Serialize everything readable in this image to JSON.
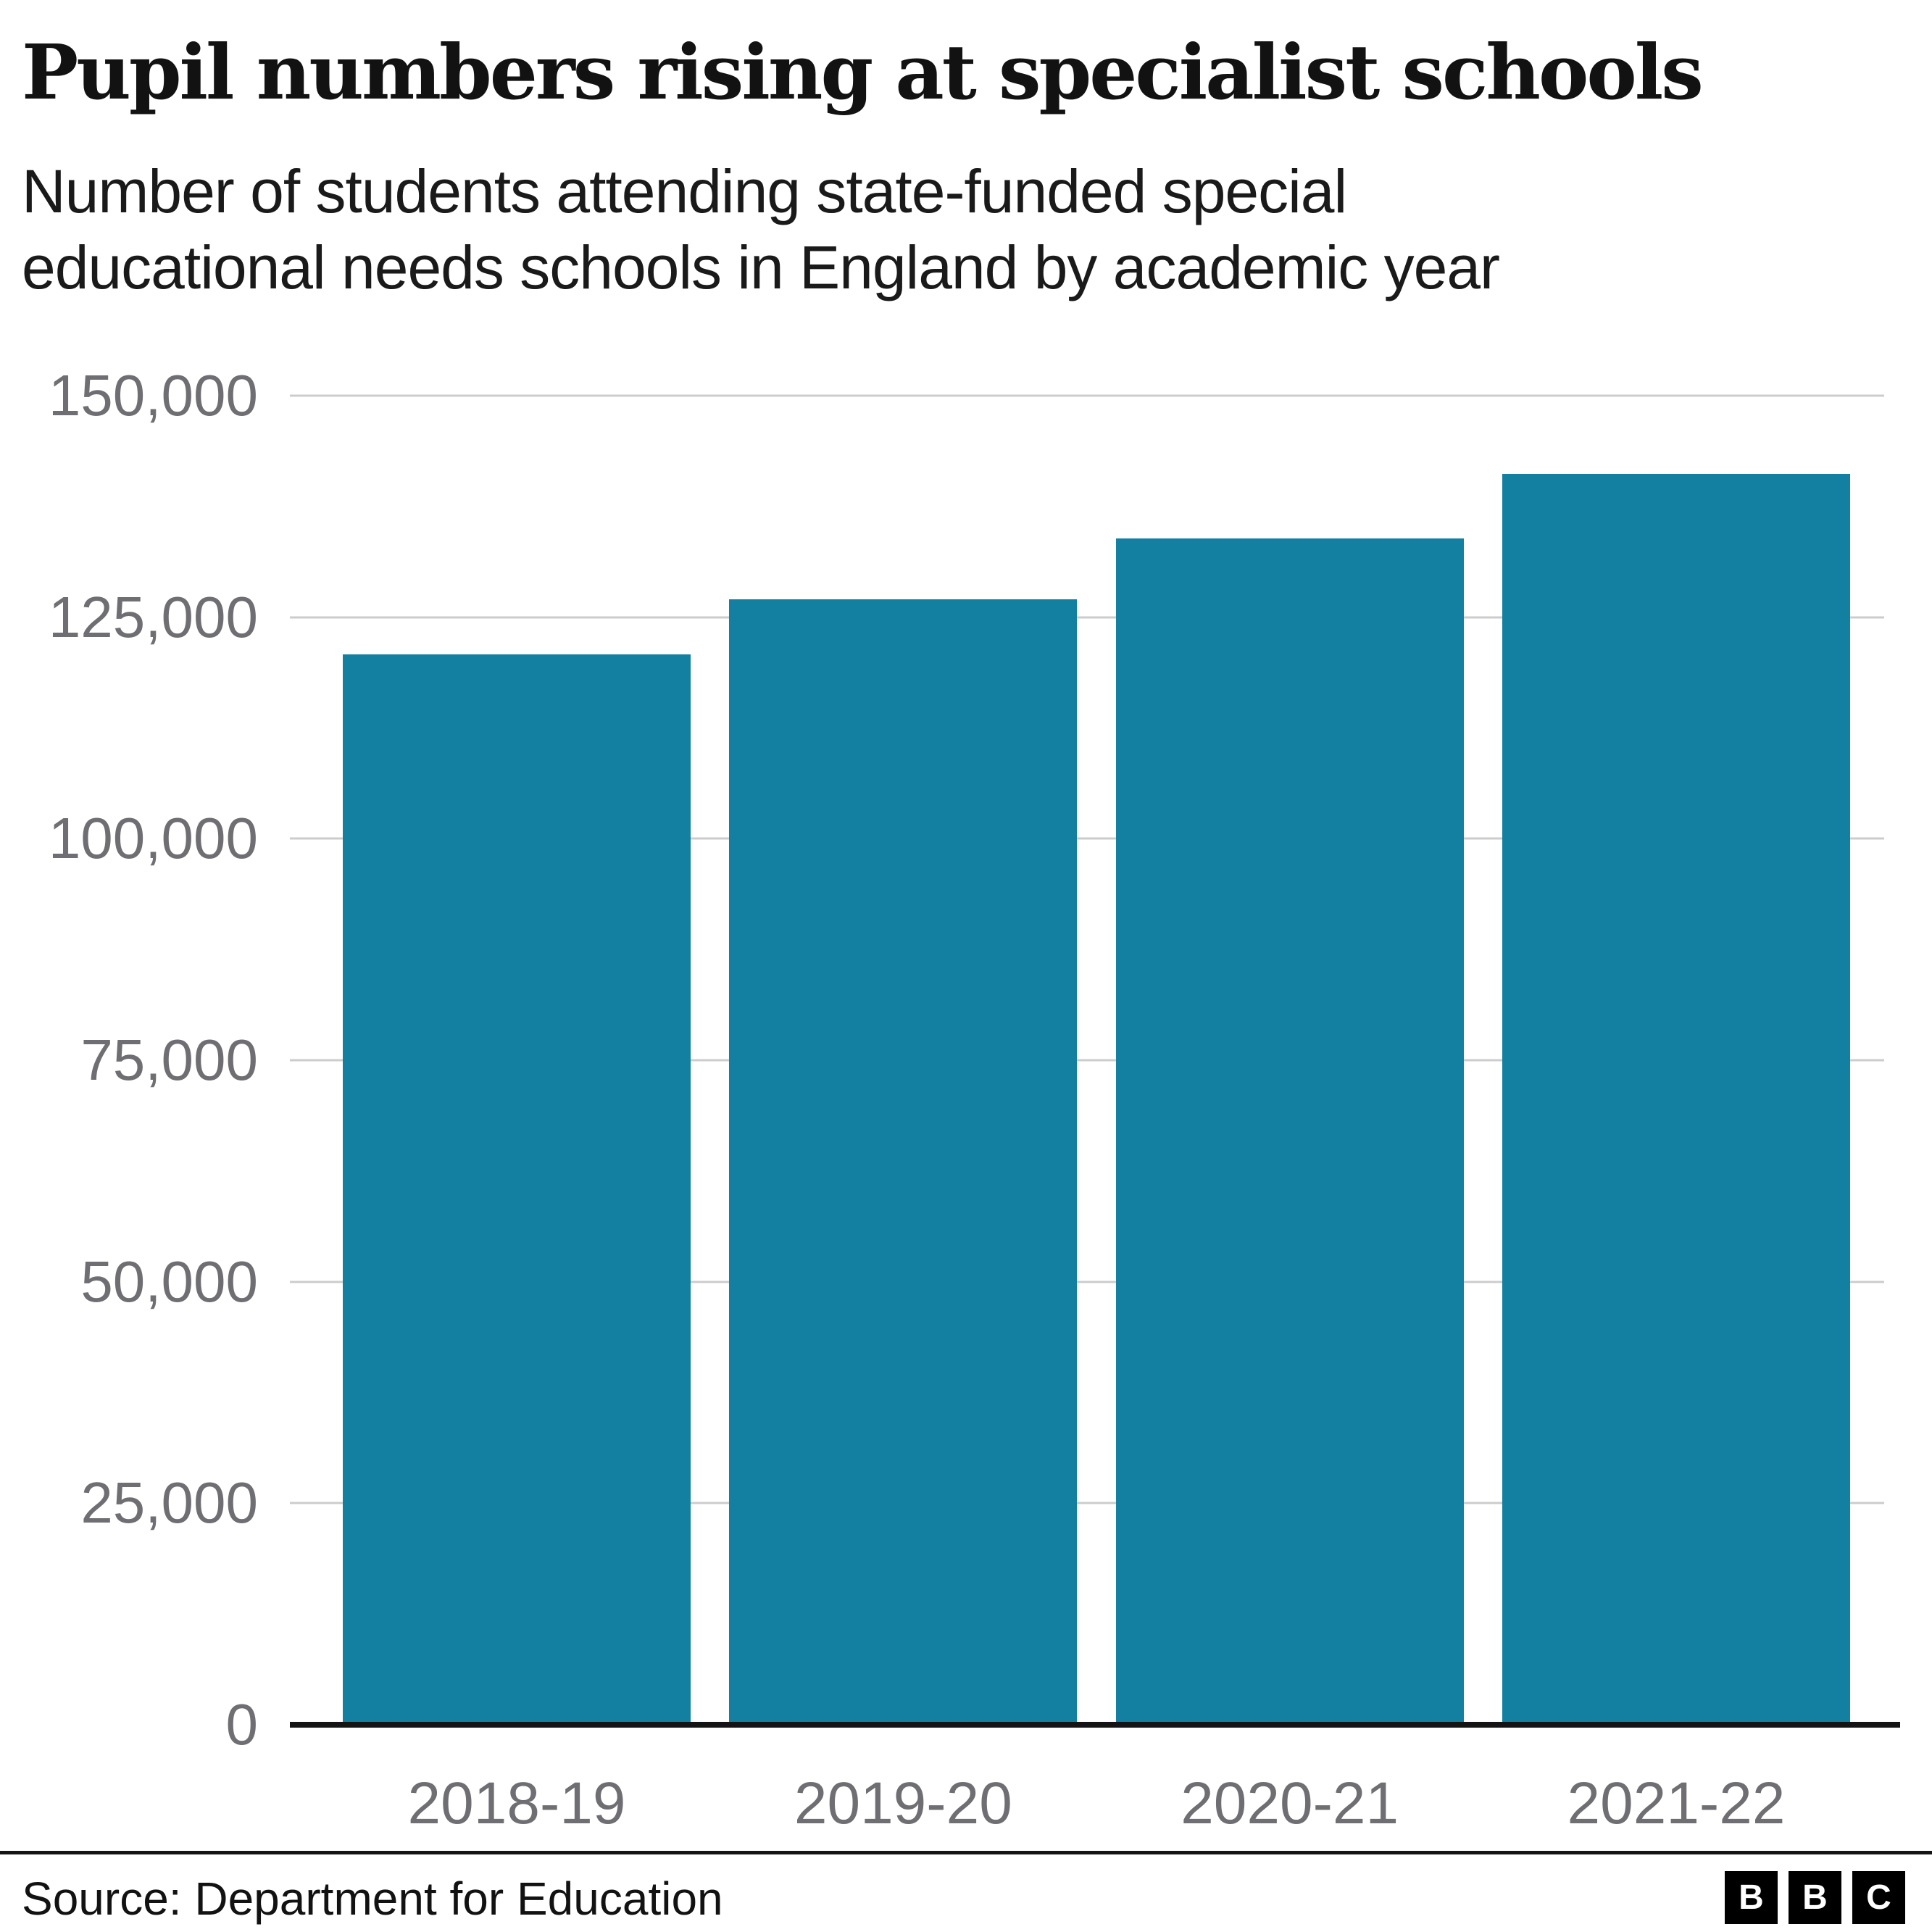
{
  "header": {
    "title": "Pupil numbers rising at specialist schools",
    "subtitle_lines": [
      "Number of students attending state-funded special",
      "educational needs schools in England by academic year"
    ]
  },
  "chart_data": {
    "type": "bar",
    "title": "Pupil numbers rising at specialist schools",
    "subtitle": "Number of students attending state-funded special educational needs schools in England by academic year",
    "categories": [
      "2018-19",
      "2019-20",
      "2020-21",
      "2021-22"
    ],
    "values": [
      120800,
      127000,
      133900,
      141200
    ],
    "xlabel": "",
    "ylabel": "",
    "ylim": [
      0,
      150000
    ],
    "yticks": [
      {
        "value": 150000,
        "label": "150,000"
      },
      {
        "value": 125000,
        "label": "125,000"
      },
      {
        "value": 100000,
        "label": "100,000"
      },
      {
        "value": 75000,
        "label": "75,000"
      },
      {
        "value": 50000,
        "label": "50,000"
      },
      {
        "value": 25000,
        "label": "25,000"
      },
      {
        "value": 0,
        "label": "0"
      }
    ],
    "grid": "horizontal",
    "legend": false,
    "bar_color": "#1380a1",
    "axis_label_color": "#6f6f73",
    "gridline_color": "#cccccc",
    "baseline_color": "#141414"
  },
  "footer": {
    "source": "Source: Department for Education",
    "logo_letters": [
      "B",
      "B",
      "C"
    ]
  }
}
